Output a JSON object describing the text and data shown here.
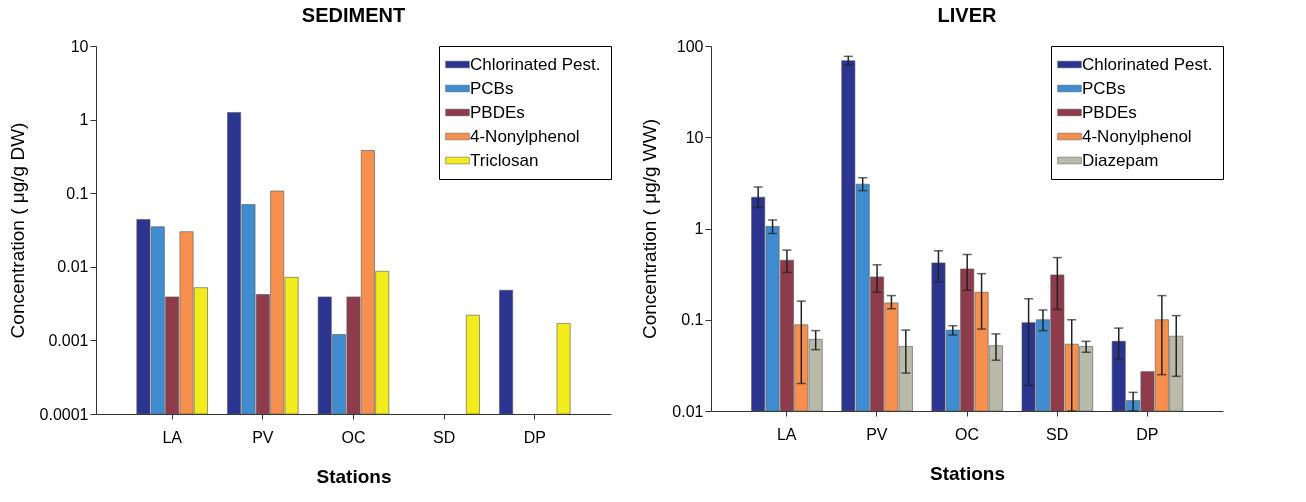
{
  "chart_data": [
    {
      "type": "bar",
      "title": "SEDIMENT",
      "xlabel": "Stations",
      "ylabel": "Concentration  ( μg/g DW)",
      "categories": [
        "LA",
        "PV",
        "OC",
        "SD",
        "DP"
      ],
      "log": true,
      "ylim": [
        0.0001,
        10
      ],
      "yticks": [
        0.0001,
        0.001,
        0.01,
        0.1,
        1,
        10
      ],
      "grid": false,
      "legend": "top right",
      "series": [
        {
          "name": "Chlorinated Pest.",
          "color": "#2b3590",
          "values": [
            0.044,
            1.25,
            0.0039,
            null,
            0.0048
          ]
        },
        {
          "name": "PCBs",
          "color": "#3f8cd0",
          "values": [
            0.035,
            0.07,
            0.0012,
            null,
            null
          ]
        },
        {
          "name": "PBDEs",
          "color": "#8e3b4c",
          "values": [
            0.0039,
            0.0042,
            0.0039,
            null,
            null
          ]
        },
        {
          "name": "4-Nonylphenol",
          "color": "#f7904e",
          "values": [
            0.03,
            0.107,
            0.38,
            null,
            null
          ]
        },
        {
          "name": "Triclosan",
          "color": "#f2ec1c",
          "values": [
            0.0052,
            0.0072,
            0.0087,
            0.0022,
            0.0017
          ]
        }
      ]
    },
    {
      "type": "bar",
      "title": "LIVER",
      "xlabel": "Stations",
      "ylabel": "Concentration  ( μg/g WW)",
      "categories": [
        "LA",
        "PV",
        "OC",
        "SD",
        "DP"
      ],
      "log": true,
      "ylim": [
        0.01,
        100
      ],
      "yticks": [
        0.01,
        0.1,
        1,
        10,
        100
      ],
      "grid": false,
      "legend": "top right",
      "series": [
        {
          "name": "Chlorinated Pest.",
          "color": "#2b3590",
          "values": [
            2.2,
            69,
            0.42,
            0.093,
            0.058
          ],
          "errors": [
            [
              1.7,
              2.85
            ],
            [
              62,
              77
            ],
            [
              0.26,
              0.57
            ],
            [
              0.019,
              0.17
            ],
            [
              0.037,
              0.081
            ]
          ]
        },
        {
          "name": "PCBs",
          "color": "#3f8cd0",
          "values": [
            1.05,
            3.06,
            0.077,
            0.1,
            0.013
          ],
          "errors": [
            [
              0.88,
              1.24
            ],
            [
              2.6,
              3.6
            ],
            [
              0.068,
              0.086
            ],
            [
              0.076,
              0.128
            ],
            [
              0.01,
              0.016
            ]
          ]
        },
        {
          "name": "PBDEs",
          "color": "#8e3b4c",
          "values": [
            0.45,
            0.295,
            0.36,
            0.31,
            0.027
          ],
          "errors": [
            [
              0.33,
              0.58
            ],
            [
              0.2,
              0.4
            ],
            [
              0.21,
              0.52
            ],
            [
              0.13,
              0.48
            ],
            null
          ]
        },
        {
          "name": "4-Nonylphenol",
          "color": "#f7904e",
          "values": [
            0.088,
            0.153,
            0.2,
            0.054,
            0.1
          ],
          "errors": [
            [
              0.02,
              0.16
            ],
            [
              0.132,
              0.184
            ],
            [
              0.079,
              0.32
            ],
            [
              0.01,
              0.1
            ],
            [
              0.025,
              0.184
            ]
          ]
        },
        {
          "name": "Diazepam",
          "color": "#b9baa9",
          "values": [
            0.061,
            0.051,
            0.052,
            0.051,
            0.066
          ],
          "errors": [
            [
              0.047,
              0.076
            ],
            [
              0.026,
              0.077
            ],
            [
              0.036,
              0.07
            ],
            [
              0.044,
              0.058
            ],
            [
              0.024,
              0.111
            ]
          ]
        }
      ]
    }
  ]
}
